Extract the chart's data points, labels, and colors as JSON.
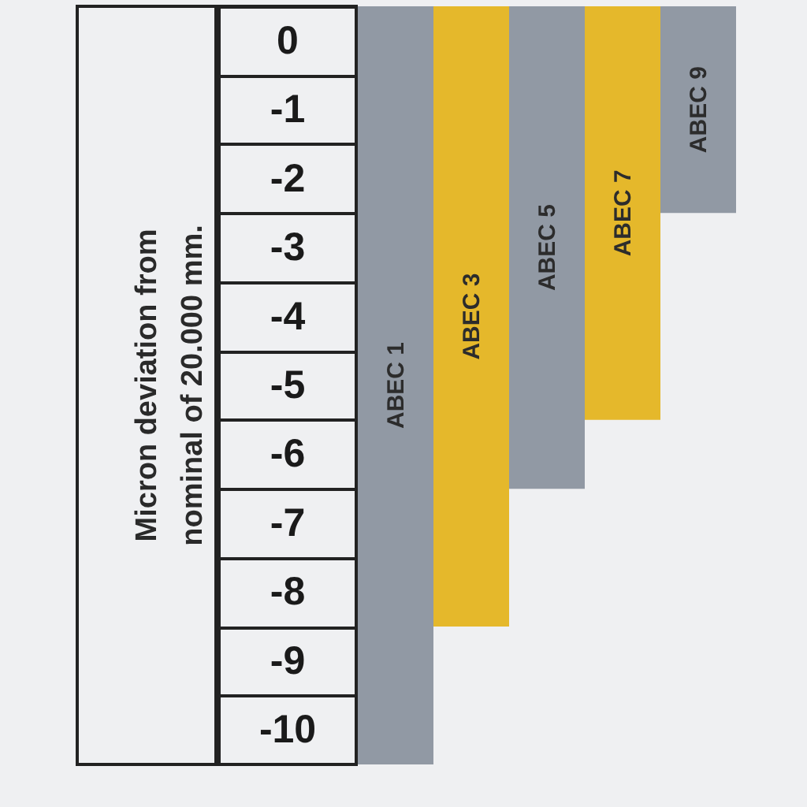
{
  "chart_data": {
    "type": "bar",
    "ylabel": "Micron deviation from nominal of 20.000 mm.",
    "categories": [
      "ABEC 1",
      "ABEC 3",
      "ABEC 5",
      "ABEC 7",
      "ABEC 9"
    ],
    "values": [
      -11,
      -9,
      -7,
      -6,
      -3
    ],
    "base": [
      0.5,
      0.5,
      0.5,
      0.5,
      0.5
    ],
    "colors": [
      "#9199a4",
      "#e5b82b",
      "#9199a4",
      "#e5b82b",
      "#9199a4"
    ],
    "ylim": [
      -10.5,
      0.5
    ],
    "yticks": [
      0,
      -1,
      -2,
      -3,
      -4,
      -5,
      -6,
      -7,
      -8,
      -9,
      -10
    ],
    "grid": false
  }
}
